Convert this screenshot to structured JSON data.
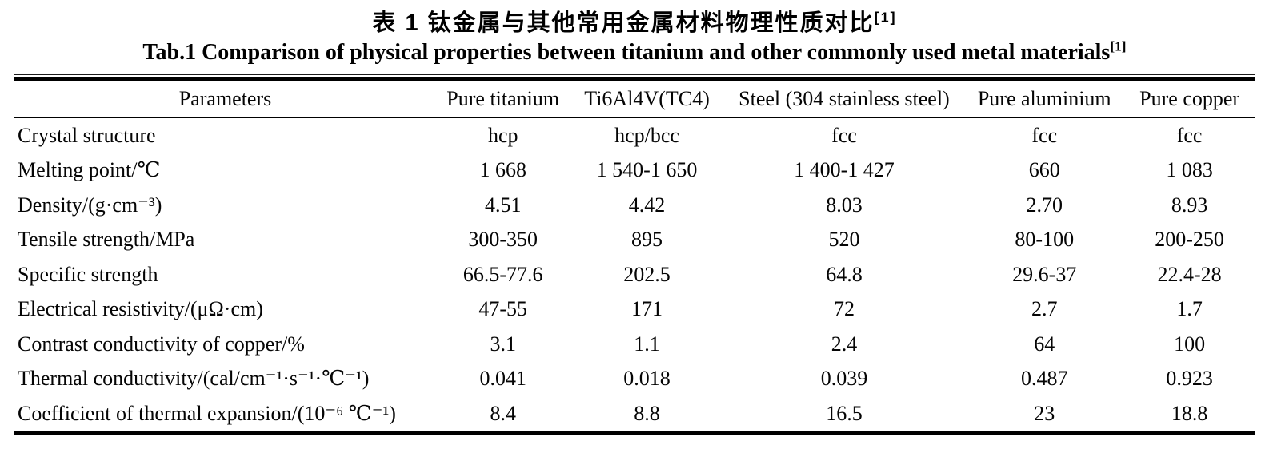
{
  "title_cn": {
    "text": "表 1  钛金属与其他常用金属材料物理性质对比",
    "ref": "[1]"
  },
  "title_en": {
    "text": "Tab.1 Comparison of physical properties between titanium and other commonly used metal materials",
    "ref": "[1]"
  },
  "table": {
    "columns": [
      "Parameters",
      "Pure titanium",
      "Ti6Al4V(TC4)",
      "Steel (304 stainless steel)",
      "Pure aluminium",
      "Pure copper"
    ],
    "rows": [
      {
        "label": "Crystal structure",
        "values": [
          "hcp",
          "hcp/bcc",
          "fcc",
          "fcc",
          "fcc"
        ]
      },
      {
        "label": "Melting point/℃",
        "values": [
          "1 668",
          "1 540-1 650",
          "1 400-1 427",
          "660",
          "1 083"
        ]
      },
      {
        "label": "Density/(g·cm⁻³)",
        "values": [
          "4.51",
          "4.42",
          "8.03",
          "2.70",
          "8.93"
        ]
      },
      {
        "label": "Tensile strength/MPa",
        "values": [
          "300-350",
          "895",
          "520",
          "80-100",
          "200-250"
        ]
      },
      {
        "label": "Specific strength",
        "values": [
          "66.5-77.6",
          "202.5",
          "64.8",
          "29.6-37",
          "22.4-28"
        ]
      },
      {
        "label": "Electrical resistivity/(μΩ·cm)",
        "values": [
          "47-55",
          "171",
          "72",
          "2.7",
          "1.7"
        ]
      },
      {
        "label": "Contrast conductivity of copper/%",
        "values": [
          "3.1",
          "1.1",
          "2.4",
          "64",
          "100"
        ]
      },
      {
        "label": "Thermal conductivity/(cal/cm⁻¹·s⁻¹·℃⁻¹)",
        "values": [
          "0.041",
          "0.018",
          "0.039",
          "0.487",
          "0.923"
        ]
      },
      {
        "label": "Coefficient of thermal expansion/(10⁻⁶ ℃⁻¹)",
        "values": [
          "8.4",
          "8.8",
          "16.5",
          "23",
          "18.8"
        ]
      }
    ]
  }
}
